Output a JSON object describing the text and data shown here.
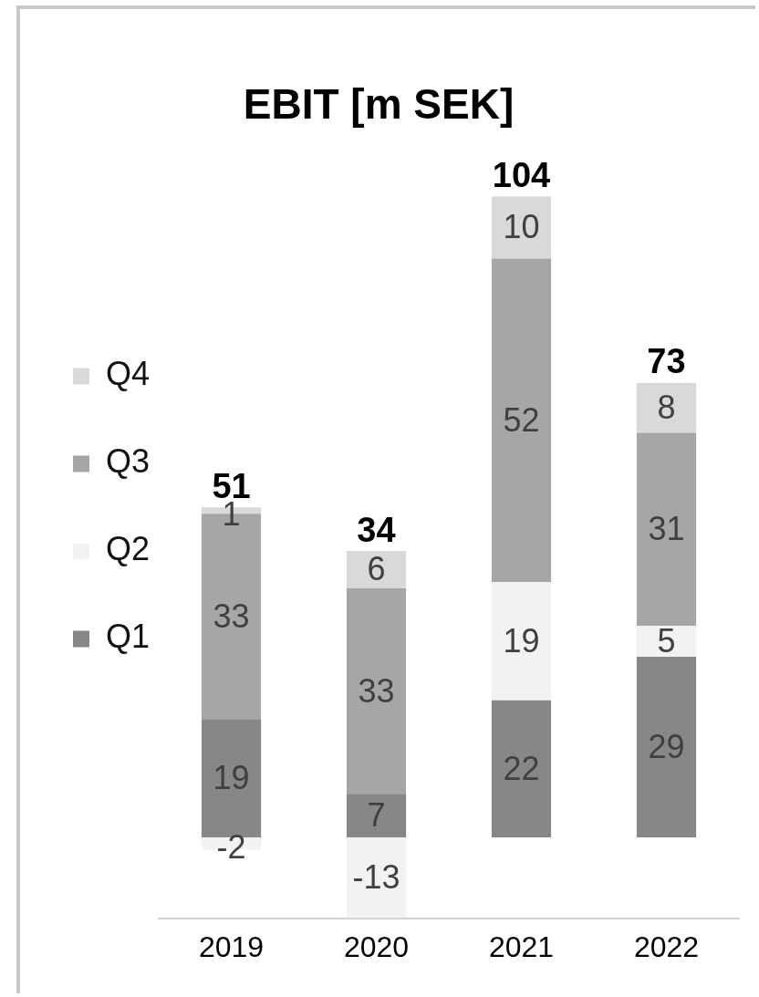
{
  "chart_data": {
    "type": "bar",
    "title": "EBIT [m SEK]",
    "categories": [
      "2019",
      "2020",
      "2021",
      "2022"
    ],
    "stacked": true,
    "legend": "left",
    "data_labels": true,
    "series": [
      {
        "name": "Q1",
        "color": "#878787",
        "values": [
          19,
          7,
          22,
          29
        ]
      },
      {
        "name": "Q2",
        "color": "#f2f2f2",
        "values": [
          -2,
          -13,
          19,
          5
        ]
      },
      {
        "name": "Q3",
        "color": "#a6a6a6",
        "values": [
          33,
          33,
          52,
          31
        ]
      },
      {
        "name": "Q4",
        "color": "#d9d9d9",
        "values": [
          1,
          6,
          10,
          8
        ]
      }
    ],
    "totals": [
      "51",
      "34",
      "104",
      "73"
    ]
  }
}
